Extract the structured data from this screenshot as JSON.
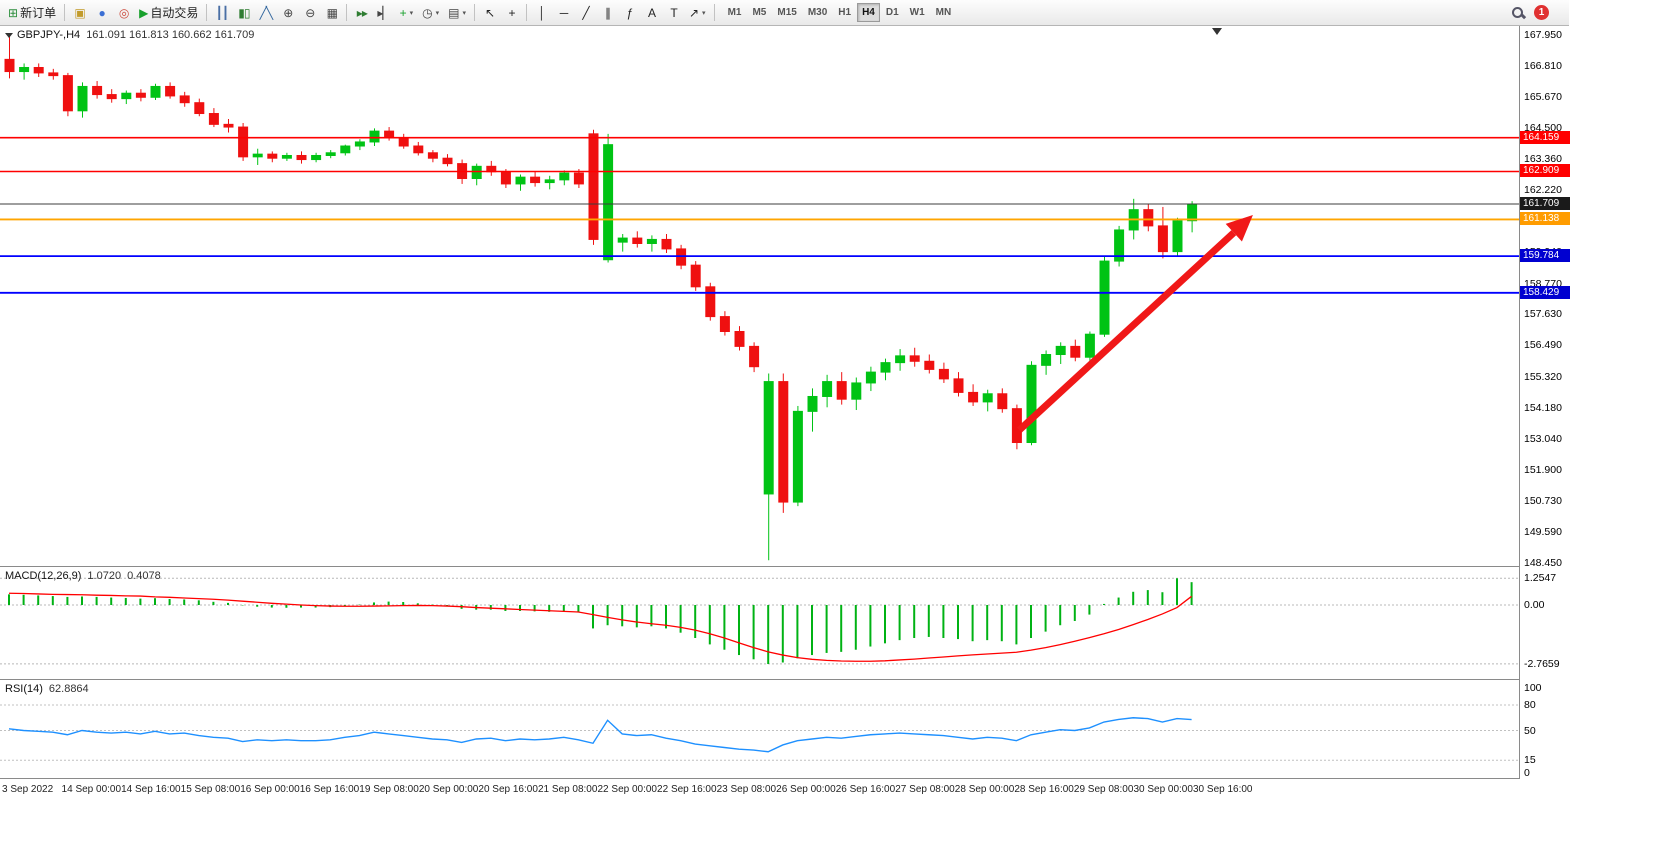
{
  "toolbar": {
    "new_order_label": "新订单",
    "auto_trading_label": "自动交易",
    "timeframes": [
      "M1",
      "M5",
      "M15",
      "M30",
      "H1",
      "H4",
      "D1",
      "W1",
      "MN"
    ],
    "active_timeframe": "H4",
    "notification_count": "1",
    "items": [
      {
        "type": "button",
        "name": "new-order-button",
        "icon": "new-order-icon",
        "glyph": "⊞",
        "color": "#2e8f3e",
        "label": "新订单"
      },
      {
        "type": "sep"
      },
      {
        "type": "button",
        "name": "market-watch-button",
        "icon": "market-watch-icon",
        "glyph": "▣",
        "color": "#c29b2a"
      },
      {
        "type": "button",
        "name": "profile-button",
        "icon": "profile-icon",
        "glyph": "●",
        "color": "#3b6fd4"
      },
      {
        "type": "button",
        "name": "community-button",
        "icon": "community-icon",
        "glyph": "◎",
        "color": "#cc4b3d"
      },
      {
        "type": "button",
        "name": "auto-trading-button",
        "icon": "auto-trading-icon",
        "glyph": "▶",
        "color": "#18a02c",
        "label": "自动交易"
      },
      {
        "type": "sep"
      },
      {
        "type": "button",
        "name": "bar-chart-button",
        "icon": "bar-chart-icon",
        "glyph": "┃┃",
        "color": "#4a6fa5"
      },
      {
        "type": "button",
        "name": "candlestick-chart-button",
        "icon": "candlestick-chart-icon",
        "glyph": "▮▯",
        "color": "#2f7d32"
      },
      {
        "type": "button",
        "name": "line-chart-button",
        "icon": "line-chart-icon",
        "glyph": "╱╲",
        "color": "#33679e"
      },
      {
        "type": "button",
        "name": "zoom-in-button",
        "icon": "zoom-in-icon",
        "glyph": "⊕",
        "color": "#444444"
      },
      {
        "type": "button",
        "name": "zoom-out-button",
        "icon": "zoom-out-icon",
        "glyph": "⊖",
        "color": "#444444"
      },
      {
        "type": "button",
        "name": "tile-windows-button",
        "icon": "tile-windows-icon",
        "glyph": "▦",
        "color": "#444444"
      },
      {
        "type": "sep"
      },
      {
        "type": "button",
        "name": "auto-scroll-button",
        "icon": "auto-scroll-icon",
        "glyph": "▸▸",
        "color": "#2f7d32"
      },
      {
        "type": "button",
        "name": "chart-shift-button",
        "icon": "chart-shift-icon",
        "glyph": "▸▏",
        "color": "#444444"
      },
      {
        "type": "button",
        "name": "indicators-button",
        "icon": "indicators-icon",
        "glyph": "+",
        "color": "#18a02c",
        "caret": true
      },
      {
        "type": "button",
        "name": "periods-button",
        "icon": "clock-icon",
        "glyph": "◷",
        "color": "#444444",
        "caret": true
      },
      {
        "type": "button",
        "name": "templates-button",
        "icon": "templates-icon",
        "glyph": "▤",
        "color": "#444444",
        "caret": true
      },
      {
        "type": "sep"
      },
      {
        "type": "button",
        "name": "cursor-button",
        "icon": "cursor-icon",
        "glyph": "↖",
        "color": "#222222"
      },
      {
        "type": "button",
        "name": "crosshair-button",
        "icon": "crosshair-icon",
        "glyph": "+",
        "color": "#222222"
      },
      {
        "type": "sep"
      },
      {
        "type": "button",
        "name": "vertical-line-button",
        "icon": "vertical-line-icon",
        "glyph": "│",
        "color": "#222222"
      },
      {
        "type": "button",
        "name": "horizontal-line-button",
        "icon": "horizontal-line-icon",
        "glyph": "─",
        "color": "#222222"
      },
      {
        "type": "button",
        "name": "trendline-button",
        "icon": "trendline-icon",
        "glyph": "╱",
        "color": "#222222"
      },
      {
        "type": "button",
        "name": "channel-button",
        "icon": "channel-icon",
        "glyph": "∥",
        "color": "#222222"
      },
      {
        "type": "button",
        "name": "fibonacci-button",
        "icon": "fibonacci-icon",
        "glyph": "ƒ",
        "color": "#222222"
      },
      {
        "type": "button",
        "name": "text-button",
        "icon": "text-icon",
        "glyph": "A",
        "color": "#222222"
      },
      {
        "type": "button",
        "name": "text-label-button",
        "icon": "text-label-icon",
        "glyph": "T",
        "color": "#222222"
      },
      {
        "type": "button",
        "name": "arrows-button",
        "icon": "arrows-icon",
        "glyph": "↗",
        "color": "#222222",
        "caret": true
      },
      {
        "type": "sep"
      }
    ]
  },
  "chart": {
    "symbol_period": "GBPJPY-,H4",
    "ohlc": "161.091 161.813 160.662 161.709"
  },
  "indicators": {
    "macd": {
      "label": "MACD(12,26,9)",
      "main_value": "1.0720",
      "signal_value": "0.4078"
    },
    "rsi": {
      "label": "RSI(14)",
      "value": "62.8864"
    }
  },
  "colors": {
    "candle_up": "#00c314",
    "candle_down": "#ef1010",
    "macd_histogram": "#00b214",
    "macd_signal": "#ff0000",
    "rsi_line": "#1e90ff",
    "arrow": "#f01818",
    "level_red": "#ff0000",
    "level_blue": "#0000ff",
    "level_orange": "#ffa500",
    "current_price_line": "#3c3c3c"
  },
  "chart_data": [
    {
      "name": "price",
      "type": "candlestick",
      "symbol": "GBPJPY-",
      "timeframe": "H4",
      "current": {
        "open": 161.091,
        "high": 161.813,
        "low": 160.662,
        "close": 161.709
      },
      "ylim": [
        148.45,
        168.3
      ],
      "y_axis_labels": [
        "167.950",
        "166.810",
        "165.670",
        "164.500",
        "163.360",
        "162.220",
        "161.080",
        "159.940",
        "158.770",
        "157.630",
        "156.490",
        "155.320",
        "154.180",
        "153.040",
        "151.900",
        "150.730",
        "149.590",
        "148.450"
      ],
      "x_axis_labels": [
        "3 Sep 2022",
        "14 Sep 00:00",
        "14 Sep 16:00",
        "15 Sep 08:00",
        "16 Sep 00:00",
        "16 Sep 16:00",
        "19 Sep 08:00",
        "20 Sep 00:00",
        "20 Sep 16:00",
        "21 Sep 08:00",
        "22 Sep 00:00",
        "22 Sep 16:00",
        "23 Sep 08:00",
        "26 Sep 00:00",
        "26 Sep 16:00",
        "27 Sep 08:00",
        "28 Sep 00:00",
        "28 Sep 16:00",
        "29 Sep 08:00",
        "30 Sep 00:00",
        "30 Sep 16:00"
      ],
      "levels": [
        {
          "value": 164.159,
          "color": "#ff0000",
          "width": 1.6
        },
        {
          "value": 162.909,
          "color": "#ff0000",
          "width": 1.6
        },
        {
          "value": 161.709,
          "color": "#3c3c3c",
          "width": 1
        },
        {
          "value": 161.138,
          "color": "#ffa500",
          "width": 1.8
        },
        {
          "value": 159.784,
          "color": "#0000ff",
          "width": 1.8
        },
        {
          "value": 158.429,
          "color": "#0000ff",
          "width": 1.8
        }
      ],
      "price_badges": [
        {
          "name": "price-label-resistance-1",
          "value": "164.159",
          "bg": "#ff0000",
          "fg": "#ffffff"
        },
        {
          "name": "price-label-resistance-2",
          "value": "162.909",
          "bg": "#ff0000",
          "fg": "#ffffff"
        },
        {
          "name": "current-price-label",
          "value": "161.709",
          "bg": "#1a1a1a",
          "fg": "#ffffff"
        },
        {
          "name": "price-label-trendline",
          "value": "161.138",
          "bg": "#ff9c00",
          "fg": "#ffffff"
        },
        {
          "name": "price-label-support-1",
          "value": "159.784",
          "bg": "#0000d0",
          "fg": "#ffffff"
        },
        {
          "name": "price-label-support-2",
          "value": "158.429",
          "bg": "#0000d0",
          "fg": "#ffffff"
        }
      ],
      "arrow": {
        "direction": "up",
        "from": {
          "index": 69.2,
          "price": 153.36
        },
        "to": {
          "index": 85.2,
          "price": 161.3
        }
      },
      "candles": [
        [
          167.05,
          167.95,
          166.35,
          166.6
        ],
        [
          166.6,
          166.9,
          166.3,
          166.75
        ],
        [
          166.75,
          166.9,
          166.4,
          166.55
        ],
        [
          166.55,
          166.7,
          166.3,
          166.45
        ],
        [
          166.45,
          166.55,
          164.95,
          165.15
        ],
        [
          165.15,
          166.2,
          164.9,
          166.05
        ],
        [
          166.05,
          166.25,
          165.6,
          165.75
        ],
        [
          165.75,
          165.95,
          165.45,
          165.6
        ],
        [
          165.6,
          165.9,
          165.4,
          165.8
        ],
        [
          165.8,
          165.95,
          165.5,
          165.65
        ],
        [
          165.65,
          166.15,
          165.55,
          166.05
        ],
        [
          166.05,
          166.2,
          165.6,
          165.7
        ],
        [
          165.7,
          165.85,
          165.3,
          165.45
        ],
        [
          165.45,
          165.6,
          164.95,
          165.05
        ],
        [
          165.05,
          165.25,
          164.55,
          164.65
        ],
        [
          164.65,
          164.85,
          164.35,
          164.55
        ],
        [
          164.55,
          164.7,
          163.3,
          163.45
        ],
        [
          163.45,
          163.75,
          163.15,
          163.55
        ],
        [
          163.55,
          163.65,
          163.25,
          163.4
        ],
        [
          163.4,
          163.6,
          163.3,
          163.5
        ],
        [
          163.5,
          163.65,
          163.2,
          163.35
        ],
        [
          163.35,
          163.6,
          163.25,
          163.5
        ],
        [
          163.5,
          163.7,
          163.4,
          163.6
        ],
        [
          163.6,
          163.9,
          163.5,
          163.85
        ],
        [
          163.85,
          164.1,
          163.7,
          164.0
        ],
        [
          164.0,
          164.5,
          163.85,
          164.4
        ],
        [
          164.4,
          164.55,
          164.05,
          164.15
        ],
        [
          164.15,
          164.3,
          163.75,
          163.85
        ],
        [
          163.85,
          164.0,
          163.5,
          163.6
        ],
        [
          163.6,
          163.7,
          163.25,
          163.4
        ],
        [
          163.4,
          163.55,
          163.1,
          163.2
        ],
        [
          163.2,
          163.35,
          162.45,
          162.65
        ],
        [
          162.65,
          163.2,
          162.4,
          163.1
        ],
        [
          163.1,
          163.3,
          162.75,
          162.9
        ],
        [
          162.9,
          163.0,
          162.3,
          162.45
        ],
        [
          162.45,
          162.8,
          162.2,
          162.7
        ],
        [
          162.7,
          162.9,
          162.35,
          162.5
        ],
        [
          162.5,
          162.75,
          162.25,
          162.6
        ],
        [
          162.6,
          162.95,
          162.4,
          162.85
        ],
        [
          162.85,
          163.0,
          162.3,
          162.45
        ],
        [
          164.3,
          164.45,
          160.2,
          160.4
        ],
        [
          159.65,
          164.3,
          159.55,
          163.9
        ],
        [
          160.3,
          160.6,
          159.95,
          160.45
        ],
        [
          160.45,
          160.7,
          160.1,
          160.25
        ],
        [
          160.25,
          160.55,
          159.95,
          160.4
        ],
        [
          160.4,
          160.6,
          159.9,
          160.05
        ],
        [
          160.05,
          160.2,
          159.3,
          159.45
        ],
        [
          159.45,
          159.6,
          158.5,
          158.65
        ],
        [
          158.65,
          158.8,
          157.4,
          157.55
        ],
        [
          157.55,
          157.75,
          156.85,
          157.0
        ],
        [
          157.0,
          157.2,
          156.3,
          156.45
        ],
        [
          156.45,
          156.6,
          155.5,
          155.7
        ],
        [
          151.0,
          155.45,
          148.55,
          155.15
        ],
        [
          155.15,
          155.45,
          150.3,
          150.7
        ],
        [
          150.7,
          154.25,
          150.55,
          154.05
        ],
        [
          154.05,
          154.9,
          153.3,
          154.6
        ],
        [
          154.6,
          155.4,
          154.2,
          155.15
        ],
        [
          155.15,
          155.5,
          154.3,
          154.5
        ],
        [
          154.5,
          155.3,
          154.1,
          155.1
        ],
        [
          155.1,
          155.7,
          154.8,
          155.5
        ],
        [
          155.5,
          156.0,
          155.2,
          155.85
        ],
        [
          155.85,
          156.35,
          155.55,
          156.1
        ],
        [
          156.1,
          156.4,
          155.7,
          155.9
        ],
        [
          155.9,
          156.15,
          155.45,
          155.6
        ],
        [
          155.6,
          155.85,
          155.1,
          155.25
        ],
        [
          155.25,
          155.5,
          154.6,
          154.75
        ],
        [
          154.75,
          155.05,
          154.25,
          154.4
        ],
        [
          154.4,
          154.85,
          154.05,
          154.7
        ],
        [
          154.7,
          154.9,
          154.0,
          154.15
        ],
        [
          154.15,
          154.3,
          152.65,
          152.9
        ],
        [
          152.9,
          155.9,
          152.8,
          155.75
        ],
        [
          155.75,
          156.3,
          155.4,
          156.15
        ],
        [
          156.15,
          156.6,
          155.8,
          156.45
        ],
        [
          156.45,
          156.7,
          155.9,
          156.05
        ],
        [
          156.05,
          157.0,
          155.75,
          156.9
        ],
        [
          156.9,
          159.75,
          156.8,
          159.6
        ],
        [
          159.6,
          160.9,
          159.4,
          160.75
        ],
        [
          160.75,
          161.9,
          160.4,
          161.5
        ],
        [
          161.5,
          161.7,
          160.7,
          160.9
        ],
        [
          160.9,
          161.6,
          159.7,
          159.95
        ],
        [
          159.95,
          161.2,
          159.75,
          161.09
        ],
        [
          161.091,
          161.813,
          160.662,
          161.709
        ]
      ]
    },
    {
      "name": "macd",
      "type": "bar+line",
      "label": "MACD(12,26,9)",
      "current_main": 1.072,
      "current_signal": 0.4078,
      "scale_labels": [
        "1.2547",
        "0.00",
        "-2.7659"
      ],
      "dashes": [
        1.2547,
        0,
        -2.7659
      ],
      "histogram": [
        0.5,
        0.48,
        0.45,
        0.42,
        0.38,
        0.4,
        0.38,
        0.35,
        0.33,
        0.3,
        0.32,
        0.28,
        0.26,
        0.22,
        0.15,
        0.1,
        -0.02,
        -0.08,
        -0.12,
        -0.13,
        -0.12,
        -0.12,
        -0.1,
        -0.05,
        0.02,
        0.12,
        0.16,
        0.14,
        0.08,
        0.02,
        -0.05,
        -0.18,
        -0.22,
        -0.22,
        -0.28,
        -0.28,
        -0.3,
        -0.32,
        -0.3,
        -0.35,
        -1.1,
        -0.95,
        -1.0,
        -1.05,
        -1.0,
        -1.1,
        -1.3,
        -1.55,
        -1.85,
        -2.1,
        -2.35,
        -2.55,
        -2.77,
        -2.7,
        -2.5,
        -2.35,
        -2.25,
        -2.2,
        -2.1,
        -1.95,
        -1.8,
        -1.65,
        -1.55,
        -1.5,
        -1.55,
        -1.6,
        -1.7,
        -1.65,
        -1.7,
        -1.85,
        -1.55,
        -1.25,
        -0.95,
        -0.75,
        -0.45,
        0.05,
        0.35,
        0.62,
        0.7,
        0.6,
        1.2547,
        1.072
      ],
      "signal": [
        0.55,
        0.54,
        0.52,
        0.5,
        0.49,
        0.48,
        0.46,
        0.45,
        0.43,
        0.42,
        0.38,
        0.36,
        0.33,
        0.3,
        0.27,
        0.23,
        0.18,
        0.13,
        0.08,
        0.04,
        0.0,
        -0.03,
        -0.05,
        -0.06,
        -0.06,
        -0.05,
        -0.04,
        -0.03,
        -0.02,
        -0.03,
        -0.05,
        -0.08,
        -0.12,
        -0.15,
        -0.18,
        -0.21,
        -0.24,
        -0.27,
        -0.3,
        -0.33,
        -0.45,
        -0.58,
        -0.7,
        -0.8,
        -0.88,
        -0.95,
        -1.05,
        -1.18,
        -1.35,
        -1.55,
        -1.78,
        -2.0,
        -2.2,
        -2.35,
        -2.47,
        -2.55,
        -2.6,
        -2.63,
        -2.64,
        -2.64,
        -2.62,
        -2.58,
        -2.54,
        -2.49,
        -2.44,
        -2.39,
        -2.34,
        -2.3,
        -2.26,
        -2.22,
        -2.12,
        -2.0,
        -1.86,
        -1.7,
        -1.53,
        -1.35,
        -1.15,
        -0.92,
        -0.68,
        -0.42,
        -0.12,
        0.4078
      ]
    },
    {
      "name": "rsi",
      "type": "line",
      "label": "RSI(14)",
      "current": 62.8864,
      "scale_labels": [
        "100",
        "80",
        "50",
        "15",
        "0"
      ],
      "dashes": [
        80,
        50,
        15
      ],
      "values": [
        52,
        50,
        49,
        48,
        45,
        50,
        48,
        47,
        48,
        46,
        49,
        46,
        47,
        44,
        42,
        41,
        37,
        39,
        38,
        39,
        38,
        38,
        39,
        42,
        44,
        48,
        46,
        44,
        42,
        40,
        39,
        36,
        40,
        41,
        38,
        40,
        39,
        40,
        42,
        39,
        35,
        62,
        46,
        44,
        45,
        41,
        38,
        34,
        32,
        30,
        28,
        27,
        25,
        33,
        38,
        40,
        42,
        41,
        43,
        45,
        46,
        47,
        46,
        45,
        44,
        42,
        40,
        42,
        41,
        38,
        45,
        48,
        51,
        50,
        53,
        60,
        63,
        65,
        64,
        60,
        64,
        62.8864
      ]
    }
  ]
}
